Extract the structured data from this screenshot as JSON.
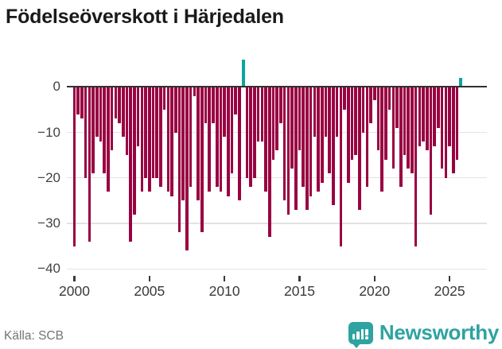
{
  "title": "Födelseöverskott i Härjedalen",
  "source": "Källa: SCB",
  "logo": {
    "text": "Newsworthy",
    "icon": "newsworthy-bar-chart-badge"
  },
  "colors": {
    "negative_bar": "#990242",
    "positive_bar": "#0ba5a0",
    "axis": "#313131",
    "grid": "#e3e3e3",
    "tick_text": "#3a3a3a",
    "ylabel_text": "#434343",
    "title_text": "#1a1a1a",
    "source_text": "#747474",
    "logo_teal": "#2ea3a1"
  },
  "y_axis": {
    "ticks": [
      {
        "label": "0",
        "value": 0
      },
      {
        "label": "−10",
        "value": -10
      },
      {
        "label": "−20",
        "value": -20
      },
      {
        "label": "−30",
        "value": -30
      },
      {
        "label": "−40",
        "value": -40
      }
    ]
  },
  "x_axis": {
    "ticks": [
      {
        "label": "2000",
        "year": 2000
      },
      {
        "label": "2005",
        "year": 2005
      },
      {
        "label": "2010",
        "year": 2010
      },
      {
        "label": "2015",
        "year": 2015
      },
      {
        "label": "2020",
        "year": 2020
      },
      {
        "label": "2025",
        "year": 2025
      }
    ]
  },
  "chart_data": {
    "type": "bar",
    "title": "Födelseöverskott i Härjedalen",
    "xlabel": "",
    "ylabel": "",
    "frequency": "quarterly",
    "start_year": 2000,
    "start_quarter": 1,
    "end_year": 2025,
    "end_quarter": 4,
    "ylim": [
      -40,
      8
    ],
    "grid": "horizontal",
    "legend": null,
    "positive_color": "#0ba5a0",
    "negative_color": "#990242",
    "values": [
      -35,
      -6,
      -7,
      -20,
      -34,
      -19,
      -11,
      -12,
      -19,
      -23,
      -14,
      -7,
      -8,
      -11,
      -15,
      -34,
      -28,
      -13,
      -23,
      -20,
      -23,
      -20,
      -20,
      -22,
      -5,
      -23,
      -24,
      -10,
      -32,
      -25,
      -36,
      -22,
      -2,
      -25,
      -32,
      -8,
      -23,
      -8,
      -22,
      -23,
      -11,
      -24,
      -19,
      -6,
      -25,
      6,
      -20,
      -22,
      -20,
      -12,
      -12,
      -23,
      -33,
      -16,
      -14,
      -8,
      -25,
      -28,
      -18,
      -27,
      -14,
      -22,
      -27,
      -24,
      -11,
      -23,
      -21,
      -11,
      -19,
      -26,
      -11,
      -35,
      -5,
      -21,
      -16,
      -15,
      -27,
      -10,
      -22,
      -8,
      -3,
      -14,
      -23,
      -16,
      -5,
      -18,
      -9,
      -22,
      -15,
      -18,
      -19,
      -35,
      -13,
      -12,
      -14,
      -28,
      -13,
      -9,
      -18,
      -20,
      -13,
      -19,
      -16,
      2
    ]
  }
}
